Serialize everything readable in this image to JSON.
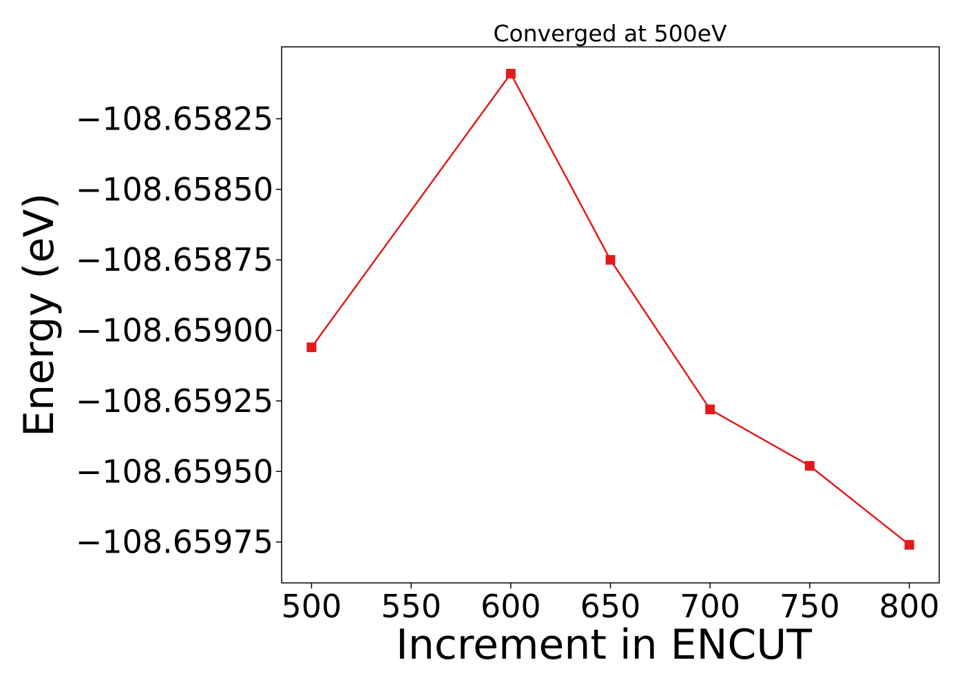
{
  "chart_data": {
    "type": "line",
    "title": "Converged at 500eV",
    "xlabel": "Increment in ENCUT",
    "ylabel": "Energy (eV)",
    "x": [
      500,
      600,
      650,
      700,
      750,
      800
    ],
    "series": [
      {
        "values": [
          -108.65906,
          -108.65809,
          -108.65875,
          -108.65928,
          -108.65948,
          -108.65976
        ],
        "color": "#e31a1c",
        "marker": "square"
      }
    ],
    "xticks": [
      500,
      550,
      600,
      650,
      700,
      750,
      800
    ],
    "xtick_labels": [
      "500",
      "550",
      "600",
      "650",
      "700",
      "750",
      "800"
    ],
    "yticks": [
      -108.65825,
      -108.6585,
      -108.65875,
      -108.659,
      -108.65925,
      -108.6595,
      -108.65975
    ],
    "ytick_labels": [
      "−108.65825",
      "−108.65850",
      "−108.65875",
      "−108.65900",
      "−108.65925",
      "−108.65950",
      "−108.65975"
    ],
    "xlim": [
      485,
      815
    ],
    "ylim": [
      -108.659895,
      -108.657995
    ],
    "grid": false,
    "legend": "none"
  }
}
